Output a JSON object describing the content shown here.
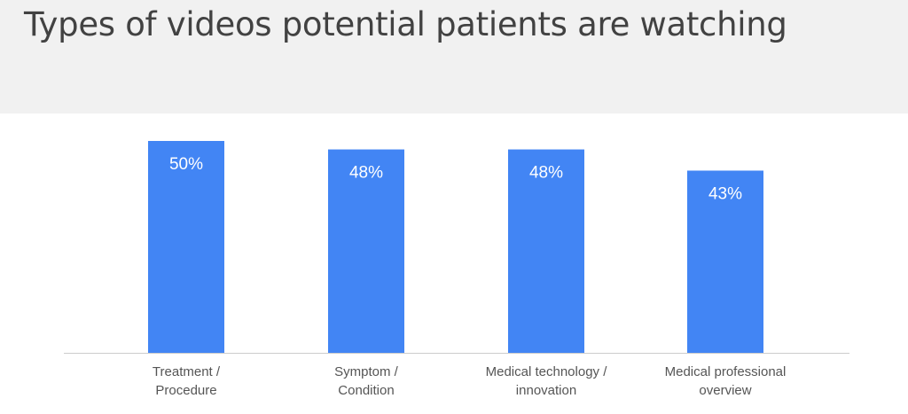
{
  "chart_data": {
    "type": "bar",
    "title": "Types of videos potential patients are watching",
    "categories": [
      [
        "Treatment /",
        "Procedure"
      ],
      [
        "Symptom /",
        "Condition"
      ],
      [
        "Medical technology /",
        "innovation"
      ],
      [
        "Medical professional",
        "overview"
      ]
    ],
    "values": [
      50,
      48,
      48,
      43
    ],
    "data_labels": [
      "50%",
      "48%",
      "48%",
      "43%"
    ],
    "ylim": [
      0,
      50
    ],
    "grid": false,
    "legend": "none",
    "bar_color": "#4285f4",
    "axis_color": "#cccccc"
  }
}
